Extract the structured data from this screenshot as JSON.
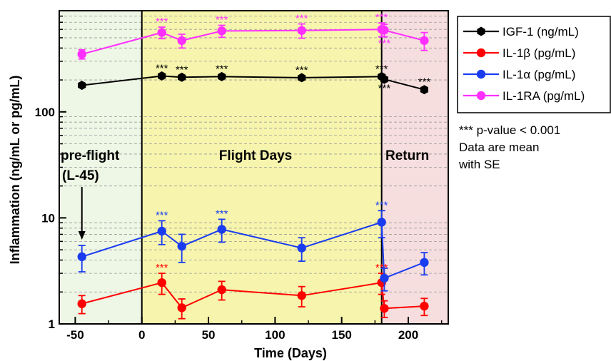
{
  "chart_data": {
    "type": "line",
    "xlabel": "Time (Days)",
    "ylabel": "Inflammation (ng/mL or pg/mL)",
    "xlim": [
      -62,
      230
    ],
    "ylim": [
      1,
      900
    ],
    "y_scale": "log",
    "x_ticks": [
      -50,
      0,
      50,
      100,
      150,
      200
    ],
    "x_tick_labels": [
      "-50",
      "0",
      "50",
      "100",
      "150",
      "200"
    ],
    "y_ticks": [
      1,
      10,
      100
    ],
    "y_tick_labels": [
      "1",
      "10",
      "100"
    ],
    "grid": "dashed horizontal minor",
    "regions": [
      {
        "label": "pre-flight",
        "sublabel": "(L-45)",
        "from": -62,
        "to": 0,
        "color": "#eef6e6"
      },
      {
        "label": "Flight Days",
        "from": 0,
        "to": 180,
        "color": "#f7f5ad"
      },
      {
        "label": "Return",
        "from": 180,
        "to": 230,
        "color": "#f7dede"
      }
    ],
    "legend_position": "right",
    "series": [
      {
        "name": "IGF-1 (ng/mL)",
        "color": "#000000",
        "marker": "hexagon",
        "x": [
          -45,
          15,
          30,
          60,
          120,
          180,
          182,
          212
        ],
        "y": [
          178,
          218,
          212,
          215,
          210,
          215,
          203,
          162
        ],
        "err": [
          8,
          10,
          10,
          10,
          10,
          10,
          10,
          8
        ],
        "stars": [
          false,
          true,
          true,
          true,
          true,
          true,
          true,
          true
        ]
      },
      {
        "name": "IL-1β (pg/mL)",
        "color": "#ff0000",
        "marker": "circle",
        "x": [
          -45,
          15,
          30,
          60,
          120,
          180,
          182,
          212
        ],
        "y": [
          1.55,
          2.45,
          1.42,
          2.1,
          1.85,
          2.45,
          1.4,
          1.47
        ],
        "err": [
          0.3,
          0.55,
          0.3,
          0.42,
          0.4,
          0.55,
          0.25,
          0.27
        ],
        "stars": [
          false,
          true,
          false,
          false,
          false,
          true,
          false,
          false
        ]
      },
      {
        "name": "IL-1α (pg/mL)",
        "color": "#1a3cf0",
        "marker": "circle",
        "x": [
          -45,
          15,
          30,
          60,
          120,
          180,
          182,
          212
        ],
        "y": [
          4.3,
          7.5,
          5.4,
          7.8,
          5.2,
          9.1,
          2.7,
          3.8
        ],
        "err": [
          1.2,
          1.9,
          1.6,
          1.9,
          1.3,
          2.6,
          0.65,
          0.9
        ],
        "stars": [
          false,
          true,
          false,
          true,
          false,
          true,
          false,
          false
        ]
      },
      {
        "name": "IL-1RA (pg/mL)",
        "color": "#ff30ff",
        "marker": "circle",
        "x": [
          -45,
          15,
          30,
          60,
          120,
          180,
          182,
          212
        ],
        "y": [
          350,
          560,
          470,
          580,
          585,
          600,
          590,
          470
        ],
        "err": [
          35,
          70,
          70,
          75,
          90,
          90,
          80,
          90
        ],
        "stars": [
          false,
          true,
          false,
          true,
          true,
          true,
          true,
          false
        ]
      }
    ],
    "annotations": {
      "star_text": "***",
      "note_line1": "*** p-value < 0.001",
      "note_line2": "Data are mean",
      "note_line3": "with SE",
      "arrow_at_x": -45
    }
  }
}
